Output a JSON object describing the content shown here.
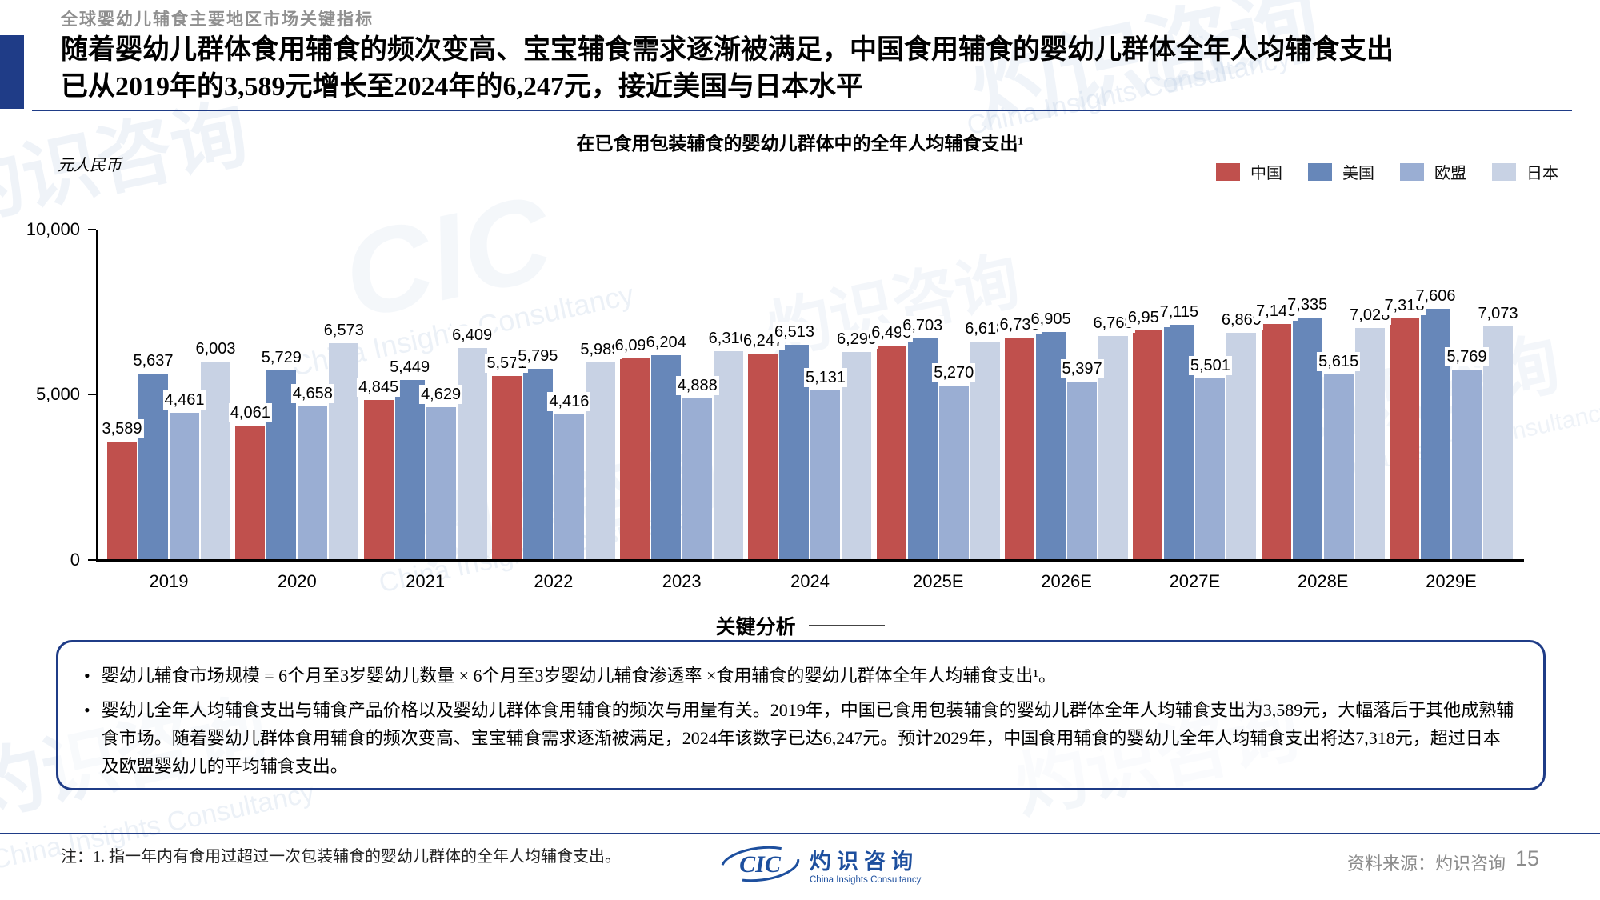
{
  "colors": {
    "accent_navy": "#1f3c87",
    "logo_blue": "#1d4f9e",
    "china_red": "#c0504d",
    "usa_blue": "#6787b9",
    "eu_blue": "#9aaed3",
    "japan_blue": "#c8d2e4"
  },
  "page": {
    "kicker": "全球婴幼儿辅食主要地区市场关键指标",
    "title": "随着婴幼儿群体食用辅食的频次变高、宝宝辅食需求逐渐被满足，中国食用辅食的婴幼儿群体全年人均辅食支出\n已从2019年的3,589元增长至2024年的6,247元，接近美国与日本水平",
    "page_number": "15"
  },
  "chart_data": {
    "type": "bar",
    "title": "在已食用包装辅食的婴幼儿群体中的全年人均辅食支出¹",
    "unit": "元人民币",
    "categories": [
      "2019",
      "2020",
      "2021",
      "2022",
      "2023",
      "2024",
      "2025E",
      "2026E",
      "2027E",
      "2028E",
      "2029E"
    ],
    "series": [
      {
        "name": "中国",
        "color": "#c0504d",
        "values": [
          3589,
          4061,
          4845,
          5571,
          6094,
          6247,
          6498,
          6733,
          6950,
          7145,
          7318
        ]
      },
      {
        "name": "美国",
        "color": "#6787b9",
        "values": [
          5637,
          5729,
          5449,
          5795,
          6204,
          6513,
          6703,
          6905,
          7115,
          7335,
          7606
        ]
      },
      {
        "name": "欧盟",
        "color": "#9aaed3",
        "values": [
          4461,
          4658,
          4629,
          4416,
          4888,
          5131,
          5270,
          5397,
          5501,
          5615,
          5769
        ]
      },
      {
        "name": "日本",
        "color": "#c8d2e4",
        "values": [
          6003,
          6573,
          6409,
          5989,
          6310,
          6299,
          6618,
          6768,
          6869,
          7028,
          7073
        ]
      }
    ],
    "y_ticks": [
      "10,000",
      "5,000",
      "0"
    ],
    "ylim": [
      0,
      10000
    ],
    "grid": false,
    "legend_position": "top-right"
  },
  "analysis": {
    "header": "关键分析",
    "bullets": [
      "婴幼儿辅食市场规模 = 6个月至3岁婴幼儿数量 × 6个月至3岁婴幼儿辅食渗透率 ×食用辅食的婴幼儿群体全年人均辅食支出¹。",
      "婴幼儿全年人均辅食支出与辅食产品价格以及婴幼儿群体食用辅食的频次与用量有关。2019年，中国已食用包装辅食的婴幼儿群体全年人均辅食支出为3,589元，大幅落后于其他成熟辅食市场。随着婴幼儿群体食用辅食的频次变高、宝宝辅食需求逐渐被满足，2024年该数字已达6,247元。预计2029年，中国食用辅食的婴幼儿全年人均辅食支出将达7,318元，超过日本及欧盟婴幼儿的平均辅食支出。"
    ]
  },
  "footer": {
    "note": "注：1. 指一年内有食用过超过一次包装辅食的婴幼儿群体的全年人均辅食支出。",
    "source": "资料来源：灼识咨询",
    "logo": {
      "abbr": "CIC",
      "name_cn": "灼识咨询",
      "name_en": "China Insights Consultancy"
    }
  },
  "watermark": {
    "cn": "灼识咨询",
    "en": "China Insights Consultancy",
    "abbr": "CIC"
  }
}
